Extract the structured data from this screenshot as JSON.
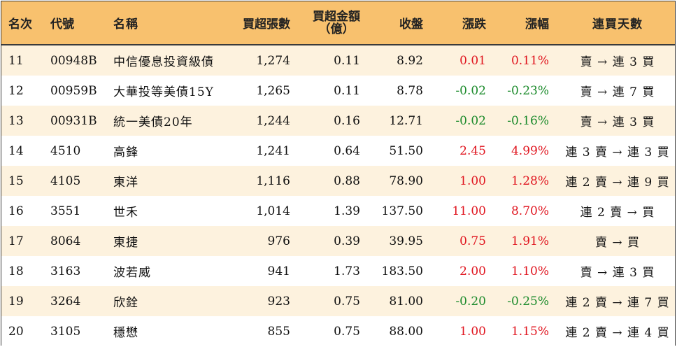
{
  "headers": {
    "rank": "名次",
    "code": "代號",
    "name": "名稱",
    "volume": "買超張數",
    "amount_line1": "買超金額",
    "amount_line2": "（億）",
    "close": "收盤",
    "change": "漲跌",
    "pct": "漲幅",
    "days": "連買天數"
  },
  "colors": {
    "header_bg": "#f8c16e",
    "stripe_bg": "#fdf2de",
    "up": "#e0141e",
    "down": "#1a8a2a"
  },
  "rows": [
    {
      "rank": "11",
      "code": "00948B",
      "name": "中信優息投資級債",
      "volume": "1,274",
      "amount": "0.11",
      "close": "8.92",
      "change": "0.01",
      "pct": "0.11%",
      "days": "賣 → 連 3 買",
      "dir": "up"
    },
    {
      "rank": "12",
      "code": "00959B",
      "name": "大華投等美債15Y",
      "volume": "1,265",
      "amount": "0.11",
      "close": "8.78",
      "change": "-0.02",
      "pct": "-0.23%",
      "days": "賣 → 連 7 買",
      "dir": "down"
    },
    {
      "rank": "13",
      "code": "00931B",
      "name": "統一美債20年",
      "volume": "1,244",
      "amount": "0.16",
      "close": "12.71",
      "change": "-0.02",
      "pct": "-0.16%",
      "days": "賣 → 連 3 買",
      "dir": "down"
    },
    {
      "rank": "14",
      "code": "4510",
      "name": "高鋒",
      "volume": "1,241",
      "amount": "0.64",
      "close": "51.50",
      "change": "2.45",
      "pct": "4.99%",
      "days": "連 3 賣 → 連 3 買",
      "dir": "up"
    },
    {
      "rank": "15",
      "code": "4105",
      "name": "東洋",
      "volume": "1,116",
      "amount": "0.88",
      "close": "78.90",
      "change": "1.00",
      "pct": "1.28%",
      "days": "連 2 賣 → 連 9 買",
      "dir": "up"
    },
    {
      "rank": "16",
      "code": "3551",
      "name": "世禾",
      "volume": "1,014",
      "amount": "1.39",
      "close": "137.50",
      "change": "11.00",
      "pct": "8.70%",
      "days": "連 2 賣 → 買",
      "dir": "up"
    },
    {
      "rank": "17",
      "code": "8064",
      "name": "東捷",
      "volume": "976",
      "amount": "0.39",
      "close": "39.95",
      "change": "0.75",
      "pct": "1.91%",
      "days": "賣 → 買",
      "dir": "up"
    },
    {
      "rank": "18",
      "code": "3163",
      "name": "波若威",
      "volume": "941",
      "amount": "1.73",
      "close": "183.50",
      "change": "2.00",
      "pct": "1.10%",
      "days": "賣 → 連 3 買",
      "dir": "up"
    },
    {
      "rank": "19",
      "code": "3264",
      "name": "欣銓",
      "volume": "923",
      "amount": "0.75",
      "close": "81.00",
      "change": "-0.20",
      "pct": "-0.25%",
      "days": "連 2 賣 → 連 7 買",
      "dir": "down"
    },
    {
      "rank": "20",
      "code": "3105",
      "name": "穩懋",
      "volume": "855",
      "amount": "0.75",
      "close": "88.00",
      "change": "1.00",
      "pct": "1.15%",
      "days": "連 2 賣 → 連 4 買",
      "dir": "up"
    }
  ]
}
